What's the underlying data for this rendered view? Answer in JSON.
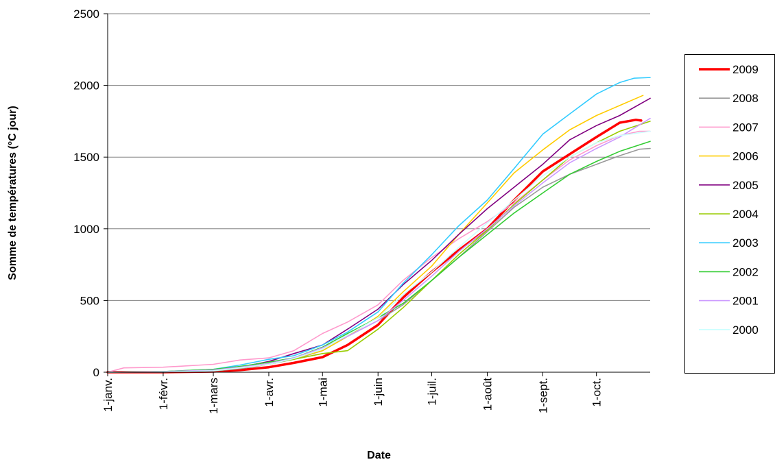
{
  "chart_data": {
    "type": "line",
    "xlabel": "Date",
    "ylabel": "Somme de températures (°C jour)",
    "ylim": [
      0,
      2500
    ],
    "yticks": [
      0,
      500,
      1000,
      1500,
      2000,
      2500
    ],
    "xlim": [
      1,
      304
    ],
    "x_unit": "day of year",
    "xticks": [
      {
        "label": "1-janv.",
        "day": 1
      },
      {
        "label": "1-févr.",
        "day": 32
      },
      {
        "label": "1-mars",
        "day": 60
      },
      {
        "label": "1-avr.",
        "day": 91
      },
      {
        "label": "1-mai",
        "day": 121
      },
      {
        "label": "1-juin",
        "day": 152
      },
      {
        "label": "1-juil.",
        "day": 182
      },
      {
        "label": "1-août",
        "day": 213
      },
      {
        "label": "1-sept.",
        "day": 244
      },
      {
        "label": "1-oct.",
        "day": 274
      }
    ],
    "grid": "horizontal",
    "legend_position": "right",
    "series": [
      {
        "name": "2009",
        "color": "#ff0000",
        "width": 3.5,
        "x": [
          1,
          32,
          60,
          75,
          91,
          105,
          121,
          135,
          152,
          166,
          182,
          197,
          213,
          228,
          244,
          259,
          274,
          287,
          296,
          299
        ],
        "y": [
          0,
          0,
          5,
          15,
          35,
          65,
          105,
          190,
          330,
          520,
          700,
          850,
          1000,
          1200,
          1400,
          1520,
          1640,
          1740,
          1760,
          1755
        ]
      },
      {
        "name": "2008",
        "color": "#999999",
        "width": 1.6,
        "x": [
          1,
          32,
          60,
          75,
          91,
          105,
          121,
          135,
          152,
          166,
          182,
          197,
          213,
          228,
          244,
          259,
          274,
          287,
          298,
          304
        ],
        "y": [
          0,
          0,
          8,
          25,
          55,
          90,
          150,
          250,
          360,
          470,
          640,
          800,
          980,
          1150,
          1290,
          1380,
          1450,
          1510,
          1555,
          1560
        ]
      },
      {
        "name": "2007",
        "color": "#ff99cc",
        "width": 1.6,
        "x": [
          1,
          10,
          32,
          60,
          75,
          91,
          105,
          121,
          135,
          152,
          166,
          182,
          197,
          213,
          228,
          244,
          259,
          274,
          287,
          298,
          304
        ],
        "y": [
          0,
          30,
          35,
          55,
          85,
          100,
          150,
          270,
          350,
          470,
          640,
          800,
          930,
          1050,
          1180,
          1340,
          1480,
          1580,
          1650,
          1680,
          1680
        ]
      },
      {
        "name": "2006",
        "color": "#ffcc00",
        "width": 1.6,
        "x": [
          1,
          32,
          60,
          75,
          91,
          105,
          121,
          135,
          152,
          166,
          182,
          197,
          213,
          228,
          244,
          259,
          274,
          287,
          300
        ],
        "y": [
          0,
          0,
          10,
          30,
          55,
          95,
          150,
          250,
          390,
          560,
          740,
          960,
          1180,
          1390,
          1550,
          1690,
          1790,
          1860,
          1930
        ]
      },
      {
        "name": "2005",
        "color": "#800080",
        "width": 1.6,
        "x": [
          1,
          32,
          60,
          75,
          91,
          105,
          121,
          135,
          152,
          166,
          182,
          197,
          213,
          228,
          244,
          259,
          274,
          287,
          304
        ],
        "y": [
          0,
          0,
          10,
          35,
          75,
          130,
          190,
          300,
          440,
          610,
          780,
          960,
          1140,
          1290,
          1450,
          1620,
          1720,
          1790,
          1910
        ]
      },
      {
        "name": "2004",
        "color": "#99cc00",
        "width": 1.6,
        "x": [
          1,
          32,
          60,
          75,
          91,
          105,
          121,
          135,
          152,
          166,
          182,
          197,
          213,
          228,
          244,
          259,
          274,
          287,
          304
        ],
        "y": [
          0,
          5,
          15,
          35,
          60,
          90,
          130,
          150,
          300,
          450,
          640,
          820,
          990,
          1170,
          1340,
          1500,
          1600,
          1680,
          1750
        ]
      },
      {
        "name": "2003",
        "color": "#33ccff",
        "width": 1.6,
        "x": [
          1,
          32,
          60,
          75,
          91,
          105,
          121,
          135,
          152,
          166,
          182,
          197,
          213,
          228,
          244,
          259,
          274,
          287,
          295,
          304
        ],
        "y": [
          0,
          5,
          20,
          50,
          90,
          115,
          190,
          280,
          420,
          620,
          820,
          1020,
          1200,
          1420,
          1660,
          1800,
          1940,
          2020,
          2050,
          2055
        ]
      },
      {
        "name": "2002",
        "color": "#33cc33",
        "width": 1.6,
        "x": [
          1,
          32,
          60,
          75,
          91,
          105,
          121,
          135,
          152,
          166,
          182,
          197,
          213,
          228,
          244,
          259,
          274,
          287,
          304
        ],
        "y": [
          0,
          5,
          20,
          40,
          70,
          100,
          175,
          270,
          380,
          480,
          640,
          800,
          960,
          1110,
          1250,
          1380,
          1470,
          1540,
          1610
        ]
      },
      {
        "name": "2001",
        "color": "#cc99ff",
        "width": 1.6,
        "x": [
          1,
          32,
          60,
          75,
          91,
          105,
          121,
          135,
          152,
          166,
          182,
          197,
          213,
          228,
          244,
          259,
          274,
          287,
          304
        ],
        "y": [
          0,
          5,
          15,
          35,
          60,
          100,
          170,
          250,
          360,
          500,
          670,
          840,
          1000,
          1160,
          1320,
          1460,
          1560,
          1640,
          1770
        ]
      },
      {
        "name": "2000",
        "color": "#ccffff",
        "width": 1.6,
        "x": [
          1,
          32,
          60,
          75,
          91,
          105,
          121,
          135,
          152,
          166,
          182,
          197,
          213,
          228,
          244,
          259,
          274,
          287,
          304
        ],
        "y": [
          0,
          3,
          10,
          30,
          55,
          95,
          160,
          260,
          380,
          540,
          700,
          870,
          1040,
          1200,
          1370,
          1500,
          1600,
          1650,
          1680
        ]
      }
    ]
  }
}
